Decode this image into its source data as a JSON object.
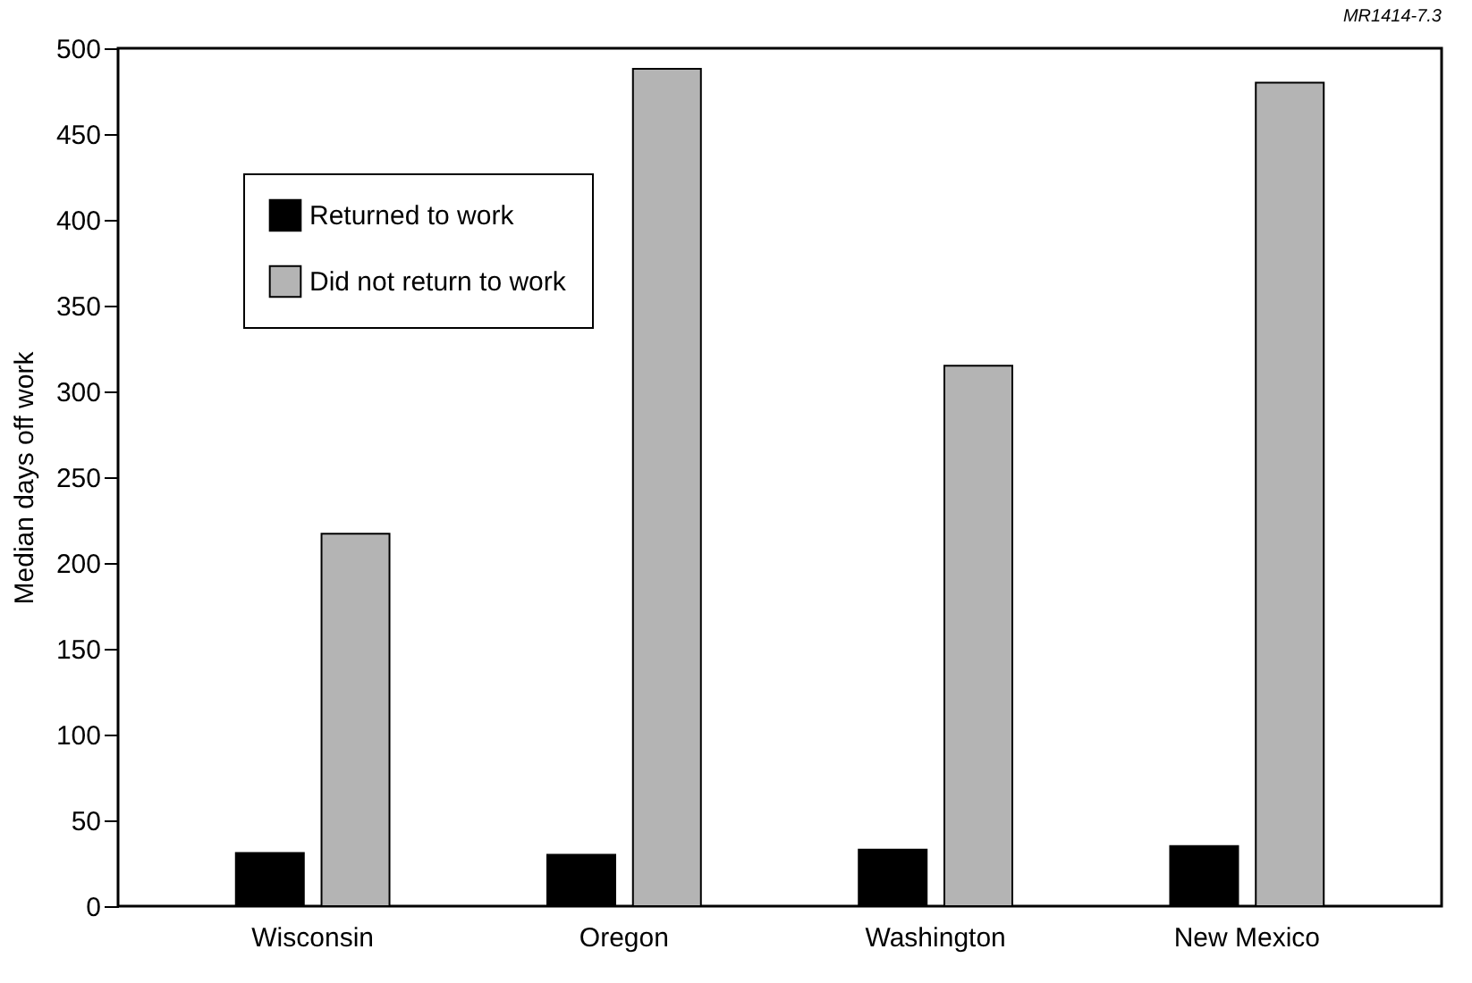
{
  "chart_data": {
    "type": "bar",
    "ylabel": "Median days off work",
    "categories": [
      "Wisconsin",
      "Oregon",
      "Washington",
      "New Mexico"
    ],
    "series": [
      {
        "name": "Returned to work",
        "color": "#000000",
        "values": [
          31,
          30,
          33,
          35
        ]
      },
      {
        "name": "Did not return to work",
        "color": "#b4b4b4",
        "values": [
          217,
          488,
          315,
          480
        ]
      }
    ],
    "ylim": [
      0,
      500
    ],
    "yticks": [
      0,
      50,
      100,
      150,
      200,
      250,
      300,
      350,
      400,
      450,
      500
    ],
    "grid": false,
    "legend": "top left",
    "annotations": [
      "MR1414-7.3"
    ]
  }
}
